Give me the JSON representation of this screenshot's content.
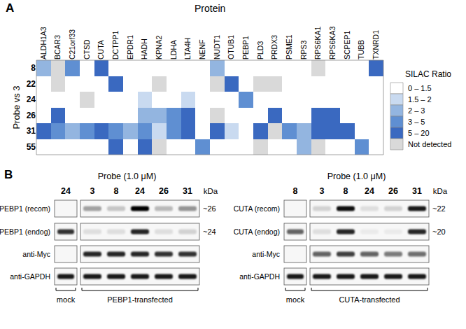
{
  "panel_labels": {
    "a": "A",
    "b": "B"
  },
  "chart_data": {
    "type": "heatmap",
    "xlabel": "Protein",
    "ylabel": "Probe vs 3",
    "categories": [
      "ALDH1A3",
      "BCAR3",
      "C21orf33",
      "CTSD",
      "CUTA",
      "DCTPP1",
      "EPDR1",
      "HADH",
      "KPNA2",
      "LDHA",
      "LTA4H",
      "NENF",
      "NUDT1",
      "OTUB1",
      "PEBP1",
      "PLD3",
      "PRDX3",
      "PSME1",
      "RPS3",
      "RPS6KA1",
      "RPS6KA3",
      "SCPEP1",
      "TUBB",
      "TXNRD1"
    ],
    "rows": [
      "8",
      "22",
      "24",
      "26",
      "31",
      "55"
    ],
    "cells": [
      [
        "2 – 3",
        "Not detected",
        "3 – 5",
        "0 – 1.5",
        "5 – 20",
        "0 – 1.5",
        "0 – 1.5",
        "0 – 1.5",
        "0 – 1.5",
        "0 – 1.5",
        "0 – 1.5",
        "0 – 1.5",
        "2 – 3",
        "0 – 1.5",
        "0 – 1.5",
        "0 – 1.5",
        "0 – 1.5",
        "0 – 1.5",
        "0 – 1.5",
        "Not detected",
        "0 – 1.5",
        "0 – 1.5",
        "0 – 1.5",
        "5 – 20"
      ],
      [
        "0 – 1.5",
        "Not detected",
        "0 – 1.5",
        "0 – 1.5",
        "0 – 1.5",
        "5 – 20",
        "0 – 1.5",
        "0 – 1.5",
        "Not detected",
        "0 – 1.5",
        "0 – 1.5",
        "0 – 1.5",
        "Not detected",
        "5 – 20",
        "0 – 1.5",
        "Not detected",
        "Not detected",
        "0 – 1.5",
        "0 – 1.5",
        "0 – 1.5",
        "0 – 1.5",
        "0 – 1.5",
        "0 – 1.5",
        "0 – 1.5"
      ],
      [
        "0 – 1.5",
        "0 – 1.5",
        "0 – 1.5",
        "Not detected",
        "0 – 1.5",
        "0 – 1.5",
        "0 – 1.5",
        "1.5 – 2",
        "0 – 1.5",
        "0 – 1.5",
        "1.5 – 2",
        "0 – 1.5",
        "0 – 1.5",
        "0 – 1.5",
        "3 – 5",
        "0 – 1.5",
        "0 – 1.5",
        "0 – 1.5",
        "0 – 1.5",
        "0 – 1.5",
        "0 – 1.5",
        "0 – 1.5",
        "0 – 1.5",
        "0 – 1.5"
      ],
      [
        "0 – 1.5",
        "5 – 20",
        "0 – 1.5",
        "0 – 1.5",
        "0 – 1.5",
        "0 – 1.5",
        "0 – 1.5",
        "2 – 3",
        "2 – 3",
        "3 – 5",
        "5 – 20",
        "0 – 1.5",
        "Not detected",
        "0 – 1.5",
        "0 – 1.5",
        "0 – 1.5",
        "5 – 20",
        "0 – 1.5",
        "0 – 1.5",
        "5 – 20",
        "5 – 20",
        "0 – 1.5",
        "0 – 1.5",
        "0 – 1.5"
      ],
      [
        "5 – 20",
        "3 – 5",
        "2 – 3",
        "3 – 5",
        "5 – 20",
        "3 – 5",
        "2 – 3",
        "3 – 5",
        "1.5 – 2",
        "3 – 5",
        "5 – 20",
        "0 – 1.5",
        "5 – 20",
        "1.5 – 2",
        "0 – 1.5",
        "5 – 20",
        "Not detected",
        "3 – 5",
        "2 – 3",
        "5 – 20",
        "5 – 20",
        "5 – 20",
        "0 – 1.5",
        "0 – 1.5"
      ],
      [
        "0 – 1.5",
        "0 – 1.5",
        "0 – 1.5",
        "0 – 1.5",
        "0 – 1.5",
        "5 – 20",
        "0 – 1.5",
        "5 – 20",
        "Not detected",
        "0 – 1.5",
        "0 – 1.5",
        "3 – 5",
        "0 – 1.5",
        "0 – 1.5",
        "0 – 1.5",
        "Not detected",
        "0 – 1.5",
        "0 – 1.5",
        "2 – 3",
        "Not detected",
        "0 – 1.5",
        "0 – 1.5",
        "3 – 5",
        "0 – 1.5"
      ]
    ],
    "color_legend": {
      "title": "SILAC Ratio",
      "classes": [
        {
          "label": "0 – 1.5",
          "color": "#ffffff"
        },
        {
          "label": "1.5 – 2",
          "color": "#c9daf0"
        },
        {
          "label": "2 – 3",
          "color": "#93b5e0"
        },
        {
          "label": "3 – 5",
          "color": "#5f8fd2"
        },
        {
          "label": "5 – 20",
          "color": "#3a69c0"
        },
        {
          "label": "Not detected",
          "color": "#d9d9d9"
        }
      ]
    }
  },
  "blots": [
    {
      "title": "Probe (1.0 μM)",
      "lanes": [
        "24",
        "3",
        "8",
        "24",
        "26",
        "31"
      ],
      "kda_header": "kDa",
      "rows": [
        {
          "label": "PEBP1 (recom)",
          "kda": "~26",
          "bands": [
            0,
            0.35,
            0.2,
            1.0,
            0.25,
            0.4
          ]
        },
        {
          "label": "PEBP1 (endog)",
          "kda": "~24",
          "bands": [
            0.8,
            0.1,
            0.1,
            0.85,
            0.1,
            0.15
          ]
        },
        {
          "label": "anti-Myc",
          "bands": [
            0,
            0.85,
            0.85,
            0.85,
            0.8,
            0.8
          ]
        },
        {
          "label": "anti-GAPDH",
          "bands": [
            0.9,
            0.9,
            0.9,
            0.9,
            0.9,
            0.9
          ]
        }
      ],
      "groups": [
        "mock",
        "PEBP1-transfected"
      ]
    },
    {
      "title": "Probe (1.0 μM)",
      "lanes": [
        "8",
        "3",
        "8",
        "24",
        "26",
        "31"
      ],
      "kda_header": "kDa",
      "rows": [
        {
          "label": "CUTA (recom)",
          "kda": "~22",
          "bands": [
            0,
            0.15,
            0.95,
            0.1,
            0.15,
            0.9
          ]
        },
        {
          "label": "CUTA (endog)",
          "kda": "~20",
          "bands": [
            0.6,
            0.1,
            0.85,
            0.05,
            0.05,
            0.85
          ]
        },
        {
          "label": "anti-Myc",
          "bands": [
            0,
            0.6,
            0.75,
            0.6,
            0.5,
            0.55
          ]
        },
        {
          "label": "anti-GAPDH",
          "bands": [
            0.9,
            0.9,
            0.9,
            0.9,
            0.9,
            0.9
          ]
        }
      ],
      "groups": [
        "mock",
        "CUTA-transfected"
      ]
    }
  ]
}
